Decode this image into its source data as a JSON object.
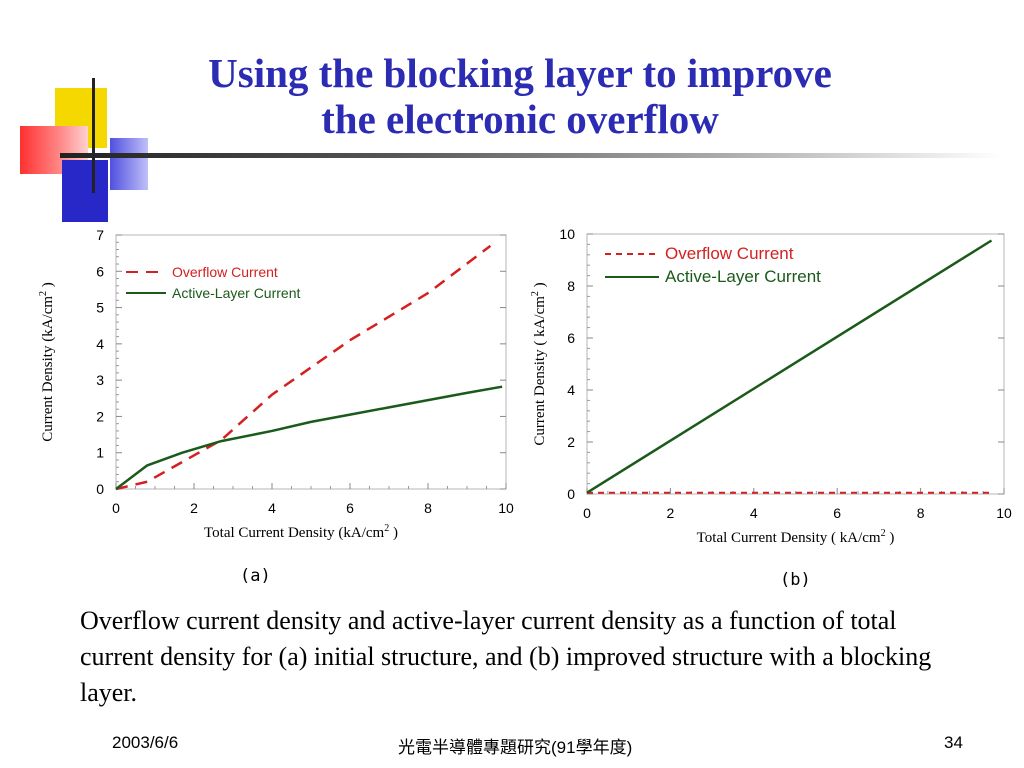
{
  "slide": {
    "title_line1": "Using the blocking layer to improve",
    "title_line2": "the electronic overflow",
    "caption": " Overflow current density and active-layer current density as a function of total current density for (a) initial structure, and (b) improved structure with a blocking layer.",
    "footer_date": "2003/6/6",
    "footer_course": "光電半導體專題研究(91學年度)",
    "footer_page": "34"
  },
  "colors": {
    "title": "#2b2bb3",
    "overflow": "#d42020",
    "active": "#1a5a1a",
    "deco_yellow": "#f5d800",
    "deco_red": "#ff3030",
    "deco_blue": "#2828c8"
  },
  "chart_data": [
    {
      "panel_label": "(a)",
      "type": "line",
      "xlabel": "Total Current Density (kA/cm",
      "xlabel_sup": "2",
      "xlabel_end": " )",
      "ylabel": "Current Density (kA/cm",
      "ylabel_sup": "2",
      "ylabel_end": " )",
      "xlim": [
        0,
        10
      ],
      "ylim": [
        0,
        7
      ],
      "xticks": [
        "0",
        "2",
        "4",
        "6",
        "8",
        "10"
      ],
      "yticks": [
        "0",
        "1",
        "2",
        "3",
        "4",
        "5",
        "6",
        "7"
      ],
      "legend_position": "top-left",
      "series": [
        {
          "name": "Overflow Current",
          "style": "dashed",
          "x": [
            0,
            0.8,
            2.7,
            4,
            6,
            8,
            9.6
          ],
          "y": [
            0,
            0.2,
            1.35,
            2.6,
            4.1,
            5.4,
            6.7
          ]
        },
        {
          "name": "Active-Layer Current",
          "style": "solid",
          "x": [
            0,
            0.8,
            1.7,
            2.7,
            4,
            5,
            6,
            7,
            8,
            9,
            9.9
          ],
          "y": [
            0,
            0.65,
            1.0,
            1.32,
            1.6,
            1.85,
            2.05,
            2.25,
            2.45,
            2.65,
            2.82
          ]
        }
      ]
    },
    {
      "panel_label": "(b)",
      "type": "line",
      "xlabel": "Total Current Density ( kA/cm",
      "xlabel_sup": "2",
      "xlabel_end": " )",
      "ylabel": "Current Density ( kA/cm",
      "ylabel_sup": "2",
      "ylabel_end": " )",
      "xlim": [
        0,
        10
      ],
      "ylim": [
        0,
        10
      ],
      "xticks": [
        "0",
        "2",
        "4",
        "6",
        "8",
        "10"
      ],
      "yticks": [
        "0",
        "2",
        "4",
        "6",
        "8",
        "10"
      ],
      "legend_position": "top-left",
      "series": [
        {
          "name": "Overflow Current",
          "style": "dashed",
          "x": [
            0,
            9.7
          ],
          "y": [
            0.05,
            0.05
          ]
        },
        {
          "name": "Active-Layer Current",
          "style": "solid",
          "x": [
            0,
            9.7
          ],
          "y": [
            0.05,
            9.75
          ]
        }
      ]
    }
  ]
}
